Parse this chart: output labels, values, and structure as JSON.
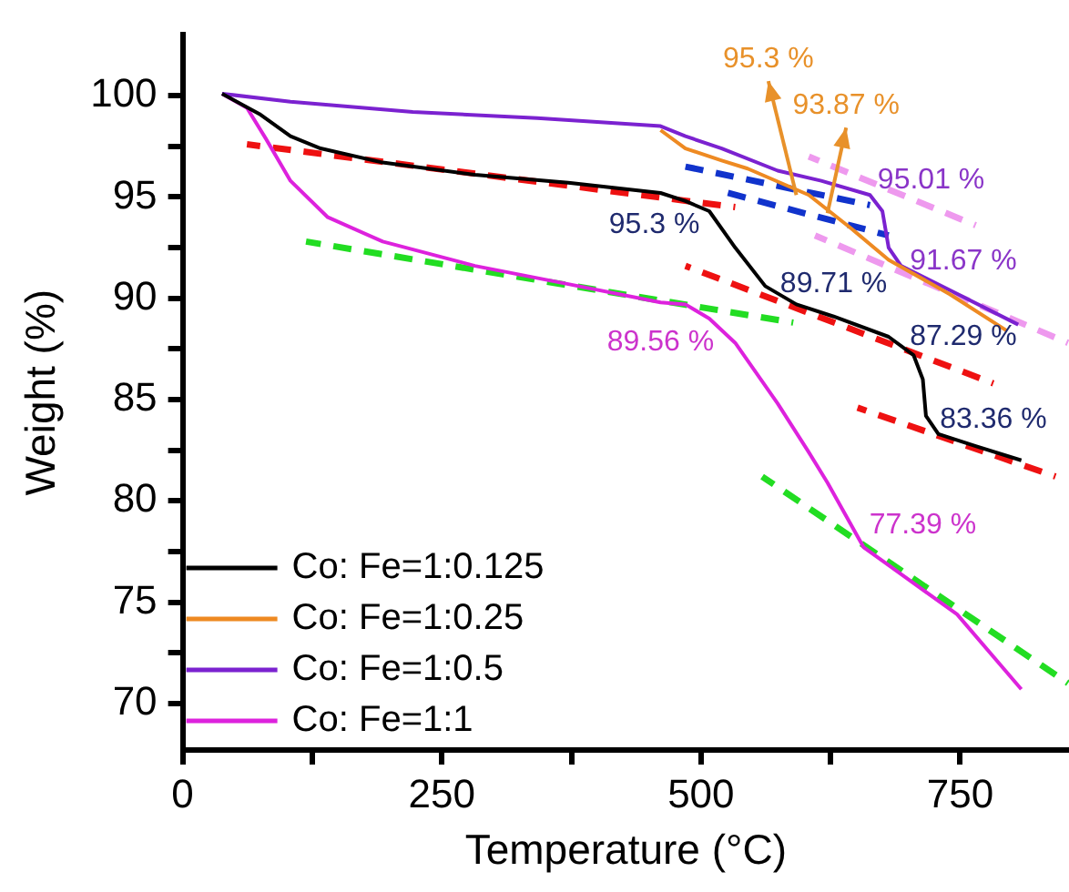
{
  "chart_data": {
    "type": "line",
    "xlabel": "Temperature (°C)",
    "ylabel": "Weight (%)",
    "xlim": [
      0,
      855
    ],
    "ylim": [
      67.7,
      103
    ],
    "xticks": [
      0,
      {
        "value": 125,
        "label": null
      },
      250,
      {
        "value": 375,
        "label": null
      },
      500,
      {
        "value": 625,
        "label": null
      },
      750
    ],
    "yticks": [
      70,
      {
        "value": 72.5,
        "label": null
      },
      75,
      {
        "value": 77.5,
        "label": null
      },
      80,
      {
        "value": 82.5,
        "label": null
      },
      85,
      {
        "value": 87.5,
        "label": null
      },
      90,
      {
        "value": 92.5,
        "label": null
      },
      95,
      {
        "value": 97.5,
        "label": null
      },
      100
    ],
    "legend": "bottom left",
    "line_style": "solid",
    "series": [
      {
        "name": "Co: Fe=1:0.125",
        "color": "#000000",
        "x": [
          38,
          74,
          104,
          133,
          193,
          282,
          372,
          461,
          485,
          508,
          533,
          562,
          592,
          628,
          681,
          705,
          714,
          717,
          729,
          765,
          809
        ],
        "values": [
          100.1,
          99.1,
          98.0,
          97.4,
          96.7,
          96.1,
          95.7,
          95.2,
          94.8,
          94.3,
          92.5,
          90.6,
          89.7,
          89.1,
          88.1,
          87.2,
          86.0,
          84.2,
          83.3,
          82.7,
          82.0
        ]
      },
      {
        "name": "Co: Fe=1:0.25",
        "color": "#ee8a22",
        "x": [
          461,
          485,
          520,
          545,
          604,
          646,
          681,
          740,
          795
        ],
        "values": [
          98.3,
          97.4,
          96.8,
          96.4,
          95.1,
          93.4,
          91.9,
          90.2,
          88.4
        ]
      },
      {
        "name": "Co: Fe=1:0.5",
        "color": "#7b22d0",
        "x": [
          38,
          104,
          222,
          342,
          461,
          485,
          520,
          574,
          616,
          663,
          675,
          681,
          693,
          740,
          806
        ],
        "values": [
          100.1,
          99.7,
          99.2,
          98.9,
          98.5,
          98.0,
          97.4,
          96.3,
          95.8,
          95.1,
          94.3,
          92.5,
          91.6,
          90.4,
          88.7
        ]
      },
      {
        "name": "Co: Fe=1:1",
        "color": "#dd22dd",
        "x": [
          38,
          62,
          80,
          104,
          140,
          193,
          282,
          372,
          461,
          485,
          508,
          533,
          574,
          604,
          622,
          657,
          687,
          747,
          809
        ],
        "values": [
          100.1,
          99.4,
          97.9,
          95.8,
          94.0,
          92.8,
          91.6,
          90.7,
          89.8,
          89.7,
          89.0,
          87.8,
          84.8,
          82.4,
          80.9,
          77.7,
          76.6,
          74.4,
          70.7
        ]
      },
      {
        "type": "line",
        "line_style": "dashed",
        "color": "#ee1111",
        "x": [
          62,
          533
        ],
        "values": [
          97.6,
          94.5
        ]
      },
      {
        "type": "line",
        "line_style": "dashed",
        "color": "#ee1111",
        "x": [
          485,
          782
        ],
        "values": [
          91.6,
          85.8
        ]
      },
      {
        "type": "line",
        "line_style": "dashed",
        "color": "#ee1111",
        "x": [
          651,
          842
        ],
        "values": [
          84.6,
          81.2
        ]
      },
      {
        "type": "line",
        "line_style": "dashed",
        "color": "#22dd22",
        "x": [
          119,
          589
        ],
        "values": [
          92.8,
          88.8
        ]
      },
      {
        "type": "line",
        "line_style": "dashed",
        "color": "#22dd22",
        "x": [
          559,
          854
        ],
        "values": [
          81.2,
          71.0
        ]
      },
      {
        "type": "line",
        "line_style": "dashed",
        "color": "#1133cc",
        "x": [
          485,
          663
        ],
        "values": [
          96.5,
          94.6
        ]
      },
      {
        "type": "line",
        "line_style": "dashed",
        "color": "#1133cc",
        "x": [
          526,
          681
        ],
        "values": [
          95.2,
          93.1
        ]
      },
      {
        "type": "line",
        "line_style": "dashed",
        "color": "#ee99ee",
        "x": [
          604,
          765
        ],
        "values": [
          97.0,
          93.6
        ]
      },
      {
        "type": "line",
        "line_style": "dashed",
        "color": "#ee99ee",
        "x": [
          610,
          854
        ],
        "values": [
          93.1,
          87.8
        ]
      }
    ],
    "annotations": [
      "95.3 %",
      "93.87 %",
      "95.01 %",
      "91.67 %",
      "95.3 %",
      "89.71 %",
      "87.29 %",
      "83.36 %",
      "89.56 %",
      "77.39 %"
    ]
  }
}
